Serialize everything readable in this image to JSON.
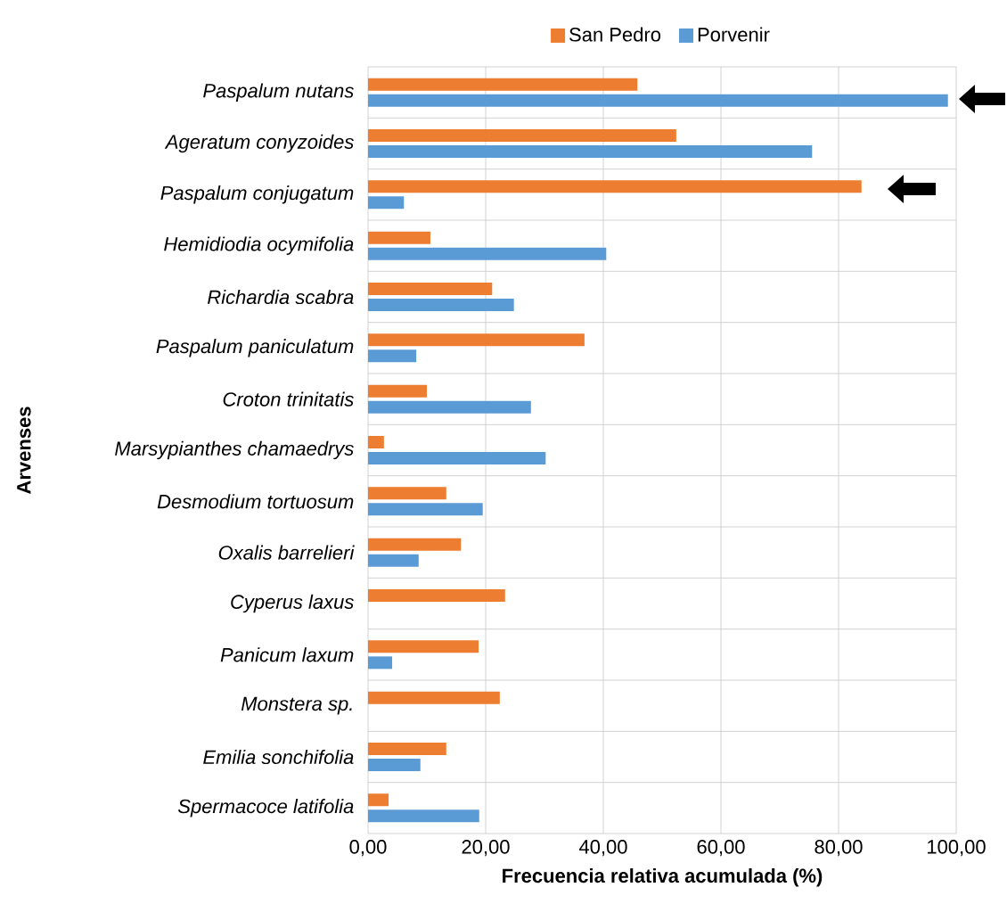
{
  "chart_data": {
    "type": "bar",
    "orientation": "horizontal",
    "xlabel": "Frecuencia relativa acumulada (%)",
    "ylabel": "Arvenses",
    "categories": [
      "Paspalum nutans",
      "Ageratum conyzoides",
      "Paspalum conjugatum",
      "Hemidiodia ocymifolia",
      "Richardia scabra",
      "Paspalum paniculatum",
      "Croton trinitatis",
      "Marsypianthes chamaedrys",
      "Desmodium tortuosum",
      "Oxalis barrelieri",
      "Cyperus laxus",
      "Panicum laxum",
      "Monstera sp.",
      "Emilia sonchifolia",
      "Spermacoce latifolia"
    ],
    "series": [
      {
        "name": "San Pedro",
        "color": "#ed7d31",
        "values": [
          45.8,
          52.4,
          83.9,
          10.6,
          21.1,
          36.8,
          10.0,
          2.7,
          13.3,
          15.8,
          23.3,
          18.8,
          22.4,
          13.3,
          3.5
        ]
      },
      {
        "name": "Porvenir",
        "color": "#5b9bd5",
        "values": [
          98.6,
          75.5,
          6.1,
          40.5,
          24.8,
          8.2,
          27.7,
          30.2,
          19.5,
          8.6,
          null,
          4.1,
          null,
          8.9,
          18.9
        ]
      }
    ],
    "xlim": [
      0,
      100
    ],
    "xticks": [
      {
        "value": 0,
        "label": "0,00"
      },
      {
        "value": 20,
        "label": "20,00"
      },
      {
        "value": 40,
        "label": "40,00"
      },
      {
        "value": 60,
        "label": "60,00"
      },
      {
        "value": 80,
        "label": "80,00"
      },
      {
        "value": 100,
        "label": "100,00"
      }
    ],
    "grid": true,
    "legend": "top"
  }
}
